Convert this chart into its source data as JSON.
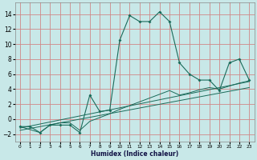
{
  "xlabel": "Humidex (Indice chaleur)",
  "xlim": [
    -0.5,
    23.5
  ],
  "ylim": [
    -3,
    15.5
  ],
  "xticks": [
    0,
    1,
    2,
    3,
    4,
    5,
    6,
    7,
    8,
    9,
    10,
    11,
    12,
    13,
    14,
    15,
    16,
    17,
    18,
    19,
    20,
    21,
    22,
    23
  ],
  "yticks": [
    -2,
    0,
    2,
    4,
    6,
    8,
    10,
    12,
    14
  ],
  "bg_color": "#c8e8e8",
  "grid_color": "#d08888",
  "line_color": "#1a6b5a",
  "main_line_x": [
    0,
    1,
    2,
    3,
    4,
    5,
    6,
    7,
    8,
    9,
    10,
    11,
    12,
    13,
    14,
    15,
    16,
    17,
    18,
    19,
    20,
    21,
    22,
    23
  ],
  "main_line_y": [
    -1.0,
    -1.0,
    -1.8,
    -0.8,
    -0.8,
    -0.8,
    -1.8,
    3.2,
    1.0,
    1.2,
    10.5,
    13.8,
    13.0,
    13.0,
    14.3,
    13.0,
    7.5,
    6.0,
    5.2,
    5.2,
    3.8,
    7.5,
    8.0,
    5.2
  ],
  "line2_x": [
    0,
    2,
    3,
    4,
    5,
    6,
    7,
    8,
    9,
    10,
    11,
    12,
    13,
    14,
    15,
    16,
    17,
    18,
    19,
    20,
    21,
    22,
    23
  ],
  "line2_y": [
    -1.0,
    -1.8,
    -0.8,
    -0.5,
    -0.5,
    -1.5,
    -0.3,
    0.2,
    0.7,
    1.3,
    1.8,
    2.3,
    2.8,
    3.3,
    3.8,
    3.2,
    3.5,
    3.9,
    4.2,
    4.0,
    4.4,
    4.8,
    5.1
  ],
  "line3_x": [
    0,
    23
  ],
  "line3_y": [
    -1.2,
    5.0
  ],
  "line4_x": [
    0,
    23
  ],
  "line4_y": [
    -1.5,
    4.2
  ]
}
